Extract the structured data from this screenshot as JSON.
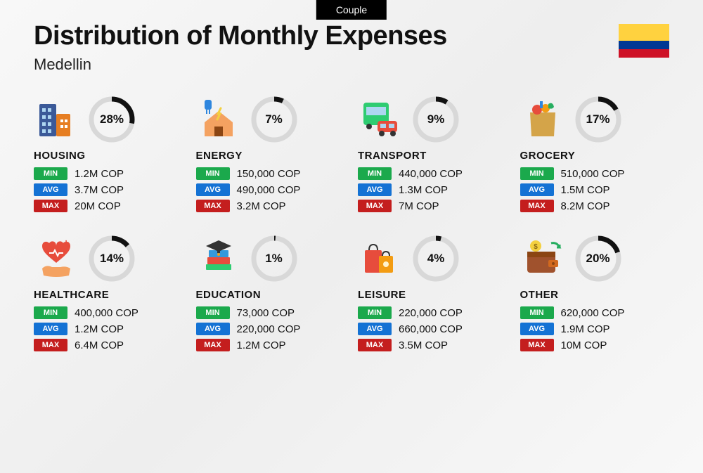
{
  "header": {
    "tab": "Couple",
    "title": "Distribution of Monthly Expenses",
    "subtitle": "Medellin",
    "flag": {
      "top": "#ffd23f",
      "mid": "#003893",
      "bot": "#ce1126"
    }
  },
  "labels": {
    "min": "MIN",
    "avg": "AVG",
    "max": "MAX"
  },
  "colors": {
    "min": "#1ba94c",
    "avg": "#1472d4",
    "max": "#c41e1e",
    "ring_fg": "#111111",
    "ring_bg": "#d8d8d8",
    "text": "#111111",
    "background": "#f5f5f5"
  },
  "ring": {
    "radius": 29,
    "stroke_width": 7,
    "size": 66
  },
  "typography": {
    "title_fontsize": 38,
    "title_weight": 800,
    "subtitle_fontsize": 22,
    "subtitle_weight": 400,
    "category_fontsize": 15,
    "category_weight": 800,
    "value_fontsize": 15,
    "value_weight": 500,
    "ring_fontsize": 17,
    "ring_weight": 800,
    "label_fontsize": 11,
    "label_weight": 600
  },
  "categories": [
    {
      "key": "housing",
      "name": "HOUSING",
      "pct": 28,
      "min": "1.2M COP",
      "avg": "3.7M COP",
      "max": "20M COP",
      "icon": "building-icon"
    },
    {
      "key": "energy",
      "name": "ENERGY",
      "pct": 7,
      "min": "150,000 COP",
      "avg": "490,000 COP",
      "max": "3.2M COP",
      "icon": "house-plug-icon"
    },
    {
      "key": "transport",
      "name": "TRANSPORT",
      "pct": 9,
      "min": "440,000 COP",
      "avg": "1.3M COP",
      "max": "7M COP",
      "icon": "bus-car-icon"
    },
    {
      "key": "grocery",
      "name": "GROCERY",
      "pct": 17,
      "min": "510,000 COP",
      "avg": "1.5M COP",
      "max": "8.2M COP",
      "icon": "grocery-bag-icon"
    },
    {
      "key": "healthcare",
      "name": "HEALTHCARE",
      "pct": 14,
      "min": "400,000 COP",
      "avg": "1.2M COP",
      "max": "6.4M COP",
      "icon": "heart-hand-icon"
    },
    {
      "key": "education",
      "name": "EDUCATION",
      "pct": 1,
      "min": "73,000 COP",
      "avg": "220,000 COP",
      "max": "1.2M COP",
      "icon": "books-cap-icon"
    },
    {
      "key": "leisure",
      "name": "LEISURE",
      "pct": 4,
      "min": "220,000 COP",
      "avg": "660,000 COP",
      "max": "3.5M COP",
      "icon": "shopping-bags-icon"
    },
    {
      "key": "other",
      "name": "OTHER",
      "pct": 20,
      "min": "620,000 COP",
      "avg": "1.9M COP",
      "max": "10M COP",
      "icon": "wallet-icon"
    }
  ]
}
